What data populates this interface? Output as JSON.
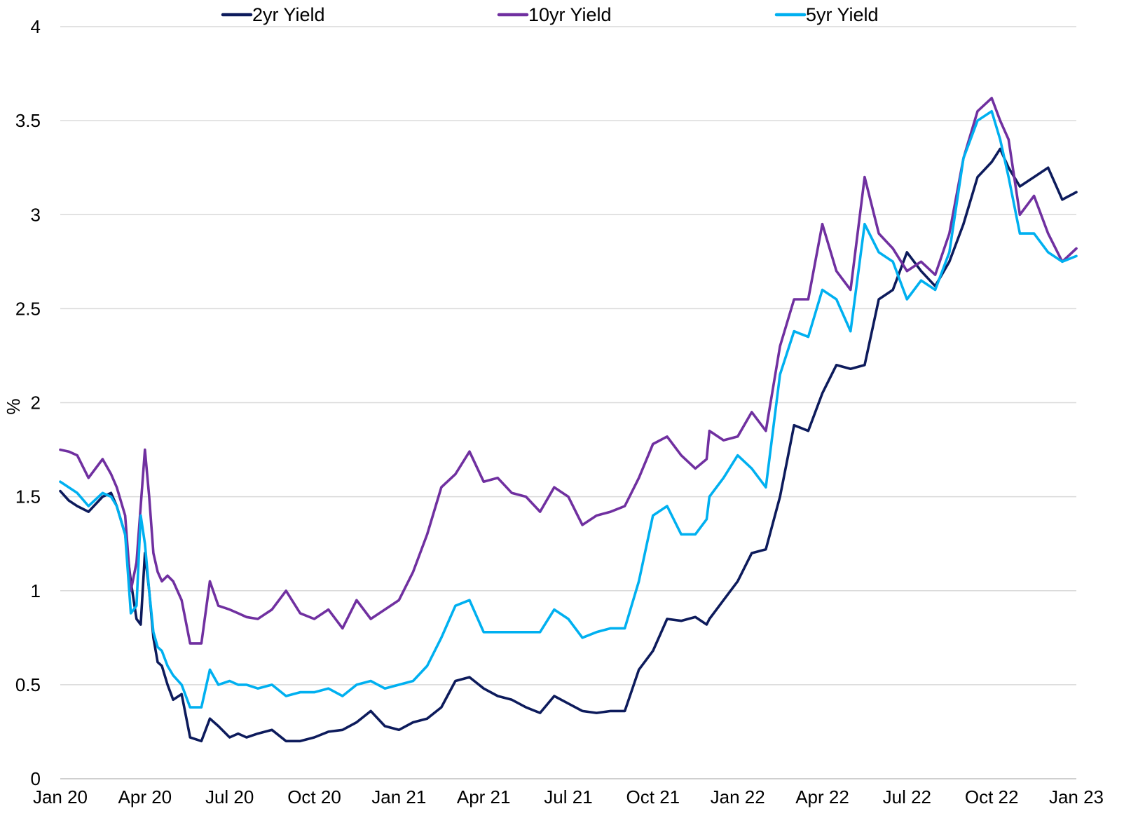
{
  "chart_data": {
    "type": "line",
    "title": "",
    "xlabel": "",
    "ylabel": "%",
    "ylim": [
      0,
      4
    ],
    "yticks": [
      "0",
      "0.5",
      "1",
      "1.5",
      "2",
      "2.5",
      "3",
      "3.5",
      "4"
    ],
    "xlim": [
      0,
      36
    ],
    "x_tick_labels": [
      "Jan 20",
      "Apr 20",
      "Jul 20",
      "Oct 20",
      "Jan 21",
      "Apr 21",
      "Jul 21",
      "Oct 21",
      "Jan 22",
      "Apr 22",
      "Jul 22",
      "Oct 22",
      "Jan 23"
    ],
    "x_unit": "months since Jan 2020",
    "grid": true,
    "legend_position": "top",
    "series": [
      {
        "name": "2yr Yield",
        "color": "#0d1b5c",
        "x": [
          0,
          0.3,
          0.6,
          1,
          1.5,
          1.8,
          2,
          2.3,
          2.5,
          2.7,
          2.85,
          3,
          3.15,
          3.3,
          3.45,
          3.6,
          3.8,
          4,
          4.3,
          4.6,
          5,
          5.3,
          5.6,
          6,
          6.3,
          6.6,
          7,
          7.5,
          8,
          8.5,
          9,
          9.5,
          10,
          10.5,
          11,
          11.5,
          12,
          12.5,
          13,
          13.5,
          14,
          14.5,
          15,
          15.5,
          16,
          16.5,
          17,
          17.5,
          18,
          18.5,
          19,
          19.5,
          20,
          20.5,
          21,
          21.5,
          22,
          22.5,
          22.9,
          23,
          23.5,
          24,
          24.5,
          25,
          25.5,
          26,
          26.5,
          27,
          27.5,
          28,
          28.5,
          29,
          29.5,
          30,
          30.5,
          31,
          31.5,
          32,
          32.5,
          33,
          33.3,
          33.6,
          34,
          34.5,
          35,
          35.5,
          36
        ],
        "values": [
          1.53,
          1.48,
          1.45,
          1.42,
          1.5,
          1.52,
          1.45,
          1.3,
          1.05,
          0.85,
          0.82,
          1.2,
          1.0,
          0.75,
          0.62,
          0.6,
          0.5,
          0.42,
          0.45,
          0.22,
          0.2,
          0.32,
          0.28,
          0.22,
          0.24,
          0.22,
          0.24,
          0.26,
          0.2,
          0.2,
          0.22,
          0.25,
          0.26,
          0.3,
          0.36,
          0.28,
          0.26,
          0.3,
          0.32,
          0.38,
          0.52,
          0.54,
          0.48,
          0.44,
          0.42,
          0.38,
          0.35,
          0.44,
          0.4,
          0.36,
          0.35,
          0.36,
          0.36,
          0.58,
          0.68,
          0.85,
          0.84,
          0.86,
          0.82,
          0.85,
          0.95,
          1.05,
          1.2,
          1.22,
          1.5,
          1.88,
          1.85,
          2.05,
          2.2,
          2.18,
          2.2,
          2.55,
          2.6,
          2.8,
          2.7,
          2.62,
          2.75,
          2.95,
          3.2,
          3.28,
          3.35,
          3.25,
          3.15,
          3.2,
          3.25,
          3.08,
          3.12
        ]
      },
      {
        "name": "10yr Yield",
        "color": "#7030a0",
        "x": [
          0,
          0.3,
          0.6,
          1,
          1.5,
          1.8,
          2,
          2.3,
          2.5,
          2.7,
          2.85,
          3,
          3.15,
          3.3,
          3.45,
          3.6,
          3.8,
          4,
          4.3,
          4.6,
          5,
          5.3,
          5.6,
          6,
          6.3,
          6.6,
          7,
          7.5,
          8,
          8.5,
          9,
          9.5,
          10,
          10.5,
          11,
          11.5,
          12,
          12.5,
          13,
          13.5,
          14,
          14.5,
          15,
          15.5,
          16,
          16.5,
          17,
          17.5,
          18,
          18.5,
          19,
          19.5,
          20,
          20.5,
          21,
          21.5,
          22,
          22.5,
          22.9,
          23,
          23.5,
          24,
          24.5,
          25,
          25.5,
          26,
          26.5,
          27,
          27.5,
          28,
          28.5,
          29,
          29.5,
          30,
          30.5,
          31,
          31.5,
          32,
          32.5,
          33,
          33.3,
          33.6,
          34,
          34.5,
          35,
          35.5,
          36
        ],
        "values": [
          1.75,
          1.74,
          1.72,
          1.6,
          1.7,
          1.62,
          1.55,
          1.4,
          1.0,
          1.15,
          1.45,
          1.75,
          1.5,
          1.2,
          1.1,
          1.05,
          1.08,
          1.05,
          0.95,
          0.72,
          0.72,
          1.05,
          0.92,
          0.9,
          0.88,
          0.86,
          0.85,
          0.9,
          1.0,
          0.88,
          0.85,
          0.9,
          0.8,
          0.95,
          0.85,
          0.9,
          0.95,
          1.1,
          1.3,
          1.55,
          1.62,
          1.74,
          1.58,
          1.6,
          1.52,
          1.5,
          1.42,
          1.55,
          1.5,
          1.35,
          1.4,
          1.42,
          1.45,
          1.6,
          1.78,
          1.82,
          1.72,
          1.65,
          1.7,
          1.85,
          1.8,
          1.82,
          1.95,
          1.85,
          2.3,
          2.55,
          2.55,
          2.95,
          2.7,
          2.6,
          3.2,
          2.9,
          2.82,
          2.7,
          2.75,
          2.68,
          2.9,
          3.3,
          3.55,
          3.62,
          3.5,
          3.4,
          3.0,
          3.1,
          2.9,
          2.75,
          2.82
        ]
      },
      {
        "name": "5yr Yield",
        "color": "#00b0f0",
        "x": [
          0,
          0.3,
          0.6,
          1,
          1.5,
          1.8,
          2,
          2.3,
          2.5,
          2.7,
          2.85,
          3,
          3.15,
          3.3,
          3.45,
          3.6,
          3.8,
          4,
          4.3,
          4.6,
          5,
          5.3,
          5.6,
          6,
          6.3,
          6.6,
          7,
          7.5,
          8,
          8.5,
          9,
          9.5,
          10,
          10.5,
          11,
          11.5,
          12,
          12.5,
          13,
          13.5,
          14,
          14.5,
          15,
          15.5,
          16,
          16.5,
          17,
          17.5,
          18,
          18.5,
          19,
          19.5,
          20,
          20.5,
          21,
          21.5,
          22,
          22.5,
          22.9,
          23,
          23.5,
          24,
          24.5,
          25,
          25.5,
          26,
          26.5,
          27,
          27.5,
          28,
          28.5,
          29,
          29.5,
          30,
          30.5,
          31,
          31.5,
          32,
          32.5,
          33,
          33.3,
          33.6,
          34,
          34.5,
          35,
          35.5,
          36
        ],
        "values": [
          1.58,
          1.55,
          1.52,
          1.45,
          1.52,
          1.5,
          1.45,
          1.3,
          0.88,
          0.92,
          1.4,
          1.25,
          1.0,
          0.78,
          0.7,
          0.68,
          0.6,
          0.55,
          0.5,
          0.38,
          0.38,
          0.58,
          0.5,
          0.52,
          0.5,
          0.5,
          0.48,
          0.5,
          0.44,
          0.46,
          0.46,
          0.48,
          0.44,
          0.5,
          0.52,
          0.48,
          0.5,
          0.52,
          0.6,
          0.75,
          0.92,
          0.95,
          0.78,
          0.78,
          0.78,
          0.78,
          0.78,
          0.9,
          0.85,
          0.75,
          0.78,
          0.8,
          0.8,
          1.05,
          1.4,
          1.45,
          1.3,
          1.3,
          1.38,
          1.5,
          1.6,
          1.72,
          1.65,
          1.55,
          2.15,
          2.38,
          2.35,
          2.6,
          2.55,
          2.38,
          2.95,
          2.8,
          2.75,
          2.55,
          2.65,
          2.6,
          2.8,
          3.3,
          3.5,
          3.55,
          3.4,
          3.2,
          2.9,
          2.9,
          2.8,
          2.75,
          2.78
        ]
      }
    ]
  }
}
